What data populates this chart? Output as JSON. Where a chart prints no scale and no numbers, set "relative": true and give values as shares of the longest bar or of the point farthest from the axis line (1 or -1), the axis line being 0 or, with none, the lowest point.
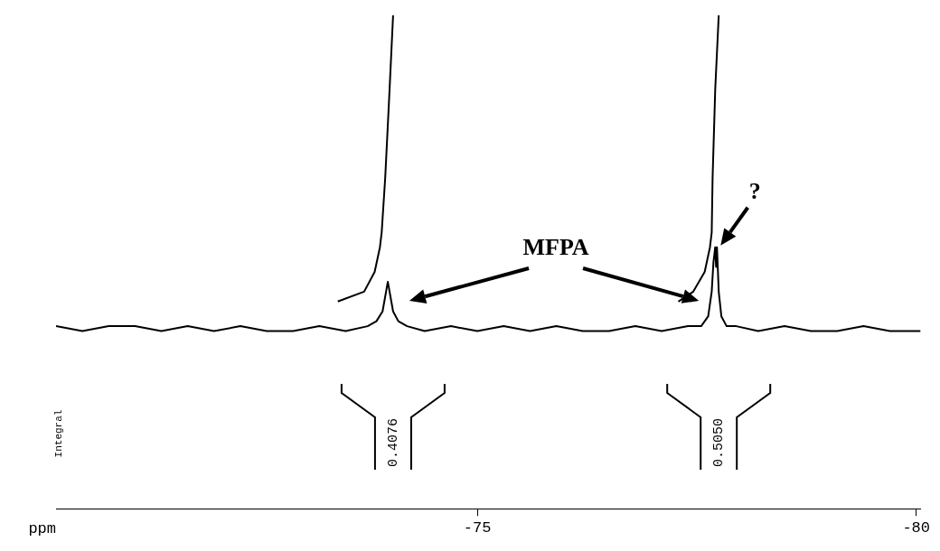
{
  "chart_data": {
    "type": "line",
    "relative": true,
    "xlabel": "ppm",
    "xlim": [
      -70.2,
      -80.05
    ],
    "xticks": [
      -75,
      -80
    ],
    "grid": false,
    "legend": false,
    "marker": "none",
    "line_style": "solid",
    "series": [
      {
        "color": "#000000",
        "x": [
          -70.2,
          -70.5,
          -70.8,
          -71.1,
          -71.4,
          -71.7,
          -72.0,
          -72.3,
          -72.6,
          -72.9,
          -73.2,
          -73.5,
          -73.75,
          -73.85,
          -73.92,
          -73.96,
          -73.98,
          -74.0,
          -74.04,
          -74.1,
          -74.2,
          -74.4,
          -74.7,
          -75.0,
          -75.3,
          -75.6,
          -75.9,
          -76.2,
          -76.5,
          -76.8,
          -77.1,
          -77.4,
          -77.55,
          -77.63,
          -77.67,
          -77.69,
          -77.71,
          -77.72,
          -77.73,
          -77.75,
          -77.78,
          -77.84,
          -77.95,
          -78.2,
          -78.5,
          -78.8,
          -79.1,
          -79.4,
          -79.7,
          -80.05
        ],
        "values": [
          0.37,
          0.36,
          0.37,
          0.37,
          0.36,
          0.37,
          0.36,
          0.37,
          0.36,
          0.36,
          0.37,
          0.36,
          0.37,
          0.38,
          0.4,
          0.44,
          0.46,
          0.44,
          0.4,
          0.38,
          0.37,
          0.36,
          0.37,
          0.36,
          0.37,
          0.36,
          0.37,
          0.36,
          0.36,
          0.37,
          0.36,
          0.37,
          0.37,
          0.39,
          0.44,
          0.5,
          0.53,
          0.49,
          0.53,
          0.44,
          0.39,
          0.37,
          0.37,
          0.36,
          0.37,
          0.36,
          0.36,
          0.37,
          0.36,
          0.36
        ]
      },
      {
        "color": "#000000",
        "x": [
          -73.41,
          -73.71,
          -73.83,
          -73.89,
          -73.91,
          -73.95,
          -74.0,
          -74.04
        ],
        "values": [
          0.42,
          0.44,
          0.48,
          0.53,
          0.56,
          0.67,
          0.85,
          1
        ]
      },
      {
        "color": "#000000",
        "x": [
          -77.29,
          -77.46,
          -77.59,
          -77.65,
          -77.67,
          -77.68,
          -77.71,
          -77.75
        ],
        "values": [
          0.42,
          0.44,
          0.48,
          0.53,
          0.56,
          0.67,
          0.85,
          1
        ]
      }
    ],
    "annotations": [
      "MFPA",
      {
        "text": "?",
        "x": -77.71,
        "y": 0.53
      },
      "0.4076",
      "0.5050",
      "Integral"
    ]
  }
}
